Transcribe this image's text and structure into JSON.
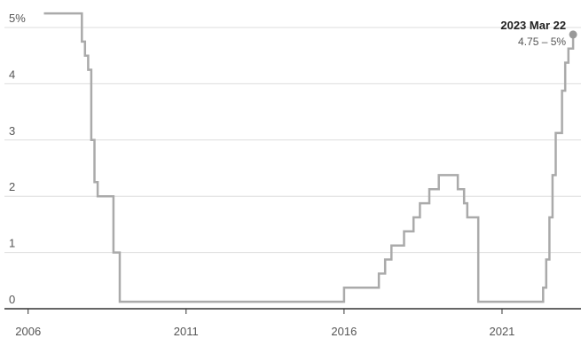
{
  "chart_data": {
    "type": "line",
    "step": true,
    "title": "",
    "xlabel": "",
    "ylabel": "",
    "xlim": [
      2005.25,
      2023.5
    ],
    "ylim": [
      0,
      5
    ],
    "grid": true,
    "x_ticks": [
      {
        "value": 2006,
        "label": "2006"
      },
      {
        "value": 2011,
        "label": "2011"
      },
      {
        "value": 2016,
        "label": "2016"
      },
      {
        "value": 2021,
        "label": "2021"
      }
    ],
    "y_ticks": [
      {
        "value": 0,
        "label": "0"
      },
      {
        "value": 1,
        "label": "1"
      },
      {
        "value": 2,
        "label": "2"
      },
      {
        "value": 3,
        "label": "3"
      },
      {
        "value": 4,
        "label": "4"
      },
      {
        "value": 5,
        "label": "5%"
      }
    ],
    "series": [
      {
        "color": "#aaaaaa",
        "points": [
          [
            2006.5,
            5.25
          ],
          [
            2007.6,
            5.25
          ],
          [
            2007.7,
            4.75
          ],
          [
            2007.8,
            4.5
          ],
          [
            2007.9,
            4.25
          ],
          [
            2008.0,
            3.0
          ],
          [
            2008.1,
            2.25
          ],
          [
            2008.2,
            2.0
          ],
          [
            2008.6,
            2.0
          ],
          [
            2008.7,
            1.0
          ],
          [
            2008.9,
            0.125
          ],
          [
            2015.9,
            0.125
          ],
          [
            2016.0,
            0.375
          ],
          [
            2016.9,
            0.375
          ],
          [
            2017.1,
            0.625
          ],
          [
            2017.3,
            0.875
          ],
          [
            2017.5,
            1.125
          ],
          [
            2017.9,
            1.375
          ],
          [
            2018.2,
            1.625
          ],
          [
            2018.4,
            1.875
          ],
          [
            2018.7,
            2.125
          ],
          [
            2019.0,
            2.375
          ],
          [
            2019.5,
            2.375
          ],
          [
            2019.6,
            2.125
          ],
          [
            2019.8,
            1.875
          ],
          [
            2019.9,
            1.625
          ],
          [
            2020.2,
            1.625
          ],
          [
            2020.25,
            0.125
          ],
          [
            2022.2,
            0.125
          ],
          [
            2022.3,
            0.375
          ],
          [
            2022.4,
            0.875
          ],
          [
            2022.5,
            1.625
          ],
          [
            2022.6,
            2.375
          ],
          [
            2022.7,
            3.125
          ],
          [
            2022.9,
            3.875
          ],
          [
            2023.0,
            4.375
          ],
          [
            2023.1,
            4.625
          ],
          [
            2023.25,
            4.875
          ]
        ]
      }
    ],
    "annotation": {
      "title": "2023 Mar 22",
      "subtitle": "4.75 – 5%",
      "x": 2023.25,
      "y": 4.875
    }
  }
}
